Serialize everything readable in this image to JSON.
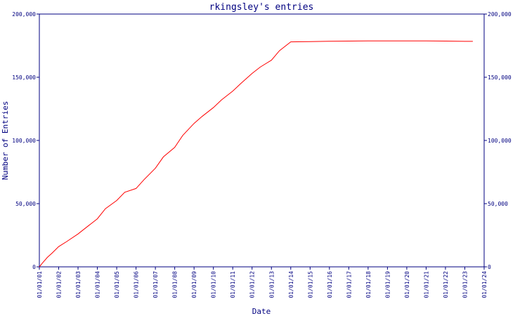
{
  "chart_data": {
    "type": "line",
    "title": "rkingsley's entries",
    "xlabel": "Date",
    "ylabel": "Number of Entries",
    "x_tick_labels": [
      "01/01/01",
      "01/01/02",
      "01/01/03",
      "01/01/04",
      "01/01/05",
      "01/01/06",
      "01/01/07",
      "01/01/08",
      "01/01/09",
      "01/01/10",
      "01/01/11",
      "01/01/12",
      "01/01/13",
      "01/01/14",
      "01/01/15",
      "01/01/16",
      "01/01/17",
      "01/01/18",
      "01/01/19",
      "01/01/20",
      "01/01/21",
      "01/01/22",
      "01/01/23",
      "01/01/24"
    ],
    "y_tick_labels": [
      "0",
      "50,000",
      "100,000",
      "150,000",
      "200,000"
    ],
    "ylim": [
      0,
      200000
    ],
    "xlim": [
      "2001-01-01",
      "2024-01-01"
    ],
    "grid": false,
    "line_color": "#ff0000",
    "axis_color": "#000080",
    "series": [
      {
        "x": [
          "2001-01-01",
          "2001-03-01",
          "2001-06-01",
          "2001-09-01",
          "2002-01-01",
          "2002-06-01",
          "2003-01-01",
          "2003-06-01",
          "2004-01-01",
          "2004-06-01",
          "2005-01-01",
          "2005-06-01",
          "2006-01-01",
          "2006-06-01",
          "2007-01-01",
          "2007-06-01",
          "2008-01-01",
          "2008-06-01",
          "2009-01-01",
          "2009-06-01",
          "2010-01-01",
          "2010-06-01",
          "2011-01-01",
          "2011-06-01",
          "2012-01-01",
          "2012-06-01",
          "2013-01-01",
          "2013-06-01",
          "2014-01-01",
          "2015-01-01",
          "2016-01-01",
          "2017-01-01",
          "2018-01-01",
          "2019-01-01",
          "2020-01-01",
          "2021-01-01",
          "2022-01-01",
          "2023-01-01",
          "2023-06-01"
        ],
        "y": [
          0,
          3000,
          7500,
          11000,
          16000,
          20000,
          26000,
          31000,
          38000,
          46000,
          52500,
          59000,
          62000,
          69000,
          78000,
          87000,
          94500,
          104000,
          113500,
          119000,
          126000,
          132000,
          139000,
          145000,
          153000,
          158000,
          163500,
          171000,
          178000,
          178200,
          178500,
          178600,
          178700,
          178800,
          178800,
          178800,
          178600,
          178400,
          178400
        ]
      }
    ]
  }
}
